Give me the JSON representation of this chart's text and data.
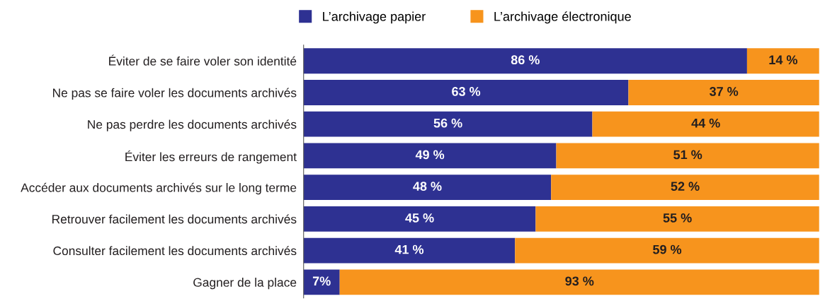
{
  "chart_data": {
    "type": "bar",
    "orientation": "horizontal",
    "stacked": true,
    "legend": "top",
    "tick_labels": "y",
    "grid": false,
    "xlim": [
      0,
      100
    ],
    "categories": [
      "Éviter de se faire voler son identité",
      "Ne pas se faire voler les documents archivés",
      "Ne pas perdre les documents archivés",
      "Éviter les erreurs de rangement",
      "Accéder aux documents archivés sur le long terme",
      "Retrouver facilement les documents archivés",
      "Consulter facilement les documents archivés",
      "Gagner de la place"
    ],
    "series": [
      {
        "name": "L’archivage papier",
        "color": "#2e3192",
        "values": [
          86,
          63,
          56,
          49,
          48,
          45,
          41,
          7
        ],
        "value_labels": [
          "86 %",
          "63 %",
          "56 %",
          "49 %",
          "48 %",
          "45 %",
          "41 %",
          "7%"
        ]
      },
      {
        "name": "L’archivage électronique",
        "color": "#f7941d",
        "values": [
          14,
          37,
          44,
          51,
          52,
          55,
          59,
          93
        ],
        "value_labels": [
          "14 %",
          "37 %",
          "44 %",
          "51 %",
          "52 %",
          "55 %",
          "59 %",
          "93 %"
        ]
      }
    ]
  }
}
